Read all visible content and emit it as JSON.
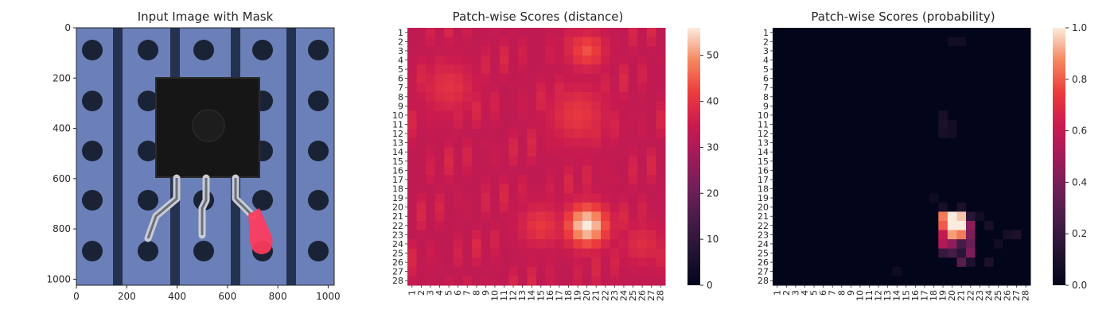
{
  "chart_data": [
    {
      "type": "image",
      "title": "Input Image with Mask",
      "xlim": [
        0,
        1024
      ],
      "ylim": [
        1024,
        0
      ],
      "xticks": [
        "0",
        "200",
        "400",
        "600",
        "800",
        "1000"
      ],
      "yticks": [
        "0",
        "200",
        "400",
        "600",
        "800",
        "1000"
      ],
      "mask_color": "#ff3b5c",
      "background_color": "#6a7fb8"
    },
    {
      "type": "heatmap",
      "title": "Patch-wise Scores (distance)",
      "rows": [
        "1",
        "2",
        "3",
        "4",
        "5",
        "6",
        "7",
        "8",
        "9",
        "10",
        "11",
        "12",
        "13",
        "14",
        "15",
        "16",
        "17",
        "18",
        "19",
        "20",
        "21",
        "22",
        "23",
        "24",
        "25",
        "26",
        "27",
        "28"
      ],
      "cols": [
        "1",
        "2",
        "3",
        "4",
        "5",
        "6",
        "7",
        "8",
        "9",
        "10",
        "11",
        "12",
        "13",
        "14",
        "15",
        "16",
        "17",
        "18",
        "19",
        "20",
        "21",
        "22",
        "23",
        "24",
        "25",
        "26",
        "27",
        "28"
      ],
      "colorbar_ticks": [
        "0",
        "10",
        "20",
        "30",
        "40",
        "50"
      ],
      "vmin": 0,
      "vmax": 56,
      "colormap": "rocket",
      "base_level": 33,
      "hotspots": [
        {
          "row": 22,
          "col": 20,
          "peak": 56,
          "sigma": 1.6
        },
        {
          "row": 3,
          "col": 20,
          "peak": 44,
          "sigma": 1.4
        },
        {
          "row": 10,
          "col": 19,
          "peak": 41,
          "sigma": 2.2
        },
        {
          "row": 22,
          "col": 15,
          "peak": 41,
          "sigma": 1.6
        },
        {
          "row": 7,
          "col": 5,
          "peak": 40,
          "sigma": 2.0
        },
        {
          "row": 24,
          "col": 26,
          "peak": 39,
          "sigma": 1.6
        }
      ]
    },
    {
      "type": "heatmap",
      "title": "Patch-wise Scores (probability)",
      "rows": [
        "1",
        "2",
        "3",
        "4",
        "5",
        "6",
        "7",
        "8",
        "9",
        "10",
        "11",
        "12",
        "13",
        "14",
        "15",
        "16",
        "17",
        "18",
        "19",
        "20",
        "21",
        "22",
        "23",
        "24",
        "25",
        "26",
        "27",
        "28"
      ],
      "cols": [
        "1",
        "2",
        "3",
        "4",
        "5",
        "6",
        "7",
        "8",
        "9",
        "10",
        "11",
        "12",
        "13",
        "14",
        "15",
        "16",
        "17",
        "18",
        "19",
        "20",
        "21",
        "22",
        "23",
        "24",
        "25",
        "26",
        "27",
        "28"
      ],
      "colorbar_ticks": [
        "0.0",
        "0.2",
        "0.4",
        "0.6",
        "0.8",
        "1.0"
      ],
      "vmin": 0.0,
      "vmax": 1.0,
      "colormap": "rocket",
      "cells": [
        {
          "row": 21,
          "col": 20,
          "value": 1.0
        },
        {
          "row": 21,
          "col": 21,
          "value": 0.95
        },
        {
          "row": 21,
          "col": 19,
          "value": 0.85
        },
        {
          "row": 22,
          "col": 20,
          "value": 1.0
        },
        {
          "row": 22,
          "col": 21,
          "value": 1.0
        },
        {
          "row": 22,
          "col": 19,
          "value": 0.8
        },
        {
          "row": 22,
          "col": 22,
          "value": 0.45
        },
        {
          "row": 23,
          "col": 20,
          "value": 0.9
        },
        {
          "row": 23,
          "col": 21,
          "value": 0.85
        },
        {
          "row": 23,
          "col": 19,
          "value": 0.6
        },
        {
          "row": 23,
          "col": 22,
          "value": 0.4
        },
        {
          "row": 24,
          "col": 19,
          "value": 0.55
        },
        {
          "row": 24,
          "col": 20,
          "value": 0.45
        },
        {
          "row": 24,
          "col": 21,
          "value": 0.25
        },
        {
          "row": 24,
          "col": 22,
          "value": 0.35
        },
        {
          "row": 25,
          "col": 19,
          "value": 0.2
        },
        {
          "row": 25,
          "col": 20,
          "value": 0.25
        },
        {
          "row": 25,
          "col": 21,
          "value": 0.15
        },
        {
          "row": 25,
          "col": 22,
          "value": 0.4
        },
        {
          "row": 26,
          "col": 21,
          "value": 0.3
        },
        {
          "row": 26,
          "col": 22,
          "value": 0.1
        },
        {
          "row": 26,
          "col": 24,
          "value": 0.1
        },
        {
          "row": 20,
          "col": 19,
          "value": 0.08
        },
        {
          "row": 20,
          "col": 21,
          "value": 0.1
        },
        {
          "row": 21,
          "col": 22,
          "value": 0.15
        },
        {
          "row": 21,
          "col": 23,
          "value": 0.06
        },
        {
          "row": 22,
          "col": 24,
          "value": 0.08
        },
        {
          "row": 23,
          "col": 26,
          "value": 0.08
        },
        {
          "row": 23,
          "col": 27,
          "value": 0.1
        },
        {
          "row": 24,
          "col": 25,
          "value": 0.06
        },
        {
          "row": 2,
          "col": 20,
          "value": 0.06
        },
        {
          "row": 2,
          "col": 21,
          "value": 0.06
        },
        {
          "row": 10,
          "col": 19,
          "value": 0.08
        },
        {
          "row": 11,
          "col": 19,
          "value": 0.1
        },
        {
          "row": 11,
          "col": 20,
          "value": 0.06
        },
        {
          "row": 12,
          "col": 19,
          "value": 0.08
        },
        {
          "row": 12,
          "col": 20,
          "value": 0.06
        },
        {
          "row": 19,
          "col": 18,
          "value": 0.05
        },
        {
          "row": 27,
          "col": 14,
          "value": 0.05
        }
      ]
    }
  ]
}
